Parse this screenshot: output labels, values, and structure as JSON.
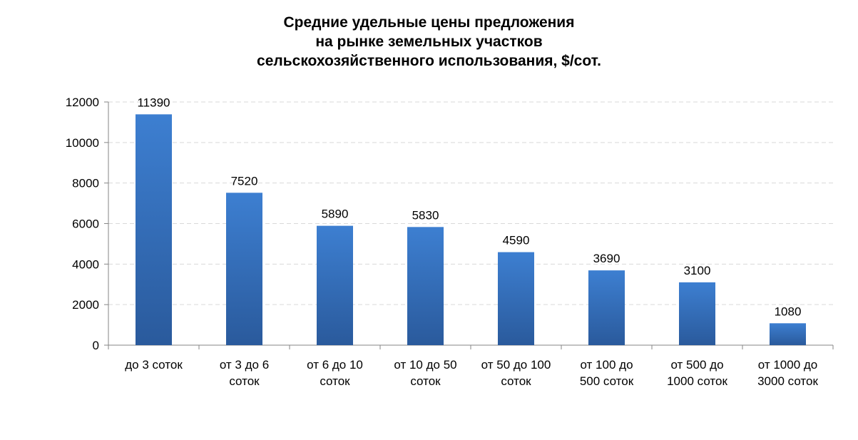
{
  "chart_data": {
    "type": "bar",
    "title_lines": [
      "Средние удельные цены предложения",
      "на рынке земельных участков",
      "сельскохозяйственного использования, $/сот."
    ],
    "categories": [
      [
        "до 3 соток"
      ],
      [
        "от 3 до 6",
        "соток"
      ],
      [
        "от 6 до 10",
        "соток"
      ],
      [
        "от 10 до 50",
        "соток"
      ],
      [
        "от 50 до 100",
        "соток"
      ],
      [
        "от 100 до",
        "500 соток"
      ],
      [
        "от 500 до",
        "1000 соток"
      ],
      [
        "от 1000 до",
        "3000 соток"
      ]
    ],
    "values": [
      11390,
      7520,
      5890,
      5830,
      4590,
      3690,
      3100,
      1080
    ],
    "ylim": [
      0,
      12000
    ],
    "yticks": [
      0,
      2000,
      4000,
      6000,
      8000,
      10000,
      12000
    ],
    "xlabel": "",
    "ylabel": "",
    "grid": true,
    "legend": "none",
    "colors": {
      "bar_top": "#3d7fd1",
      "bar_bottom": "#2a5a9c",
      "gridline": "#d9d9d9",
      "axis": "#868686"
    }
  }
}
